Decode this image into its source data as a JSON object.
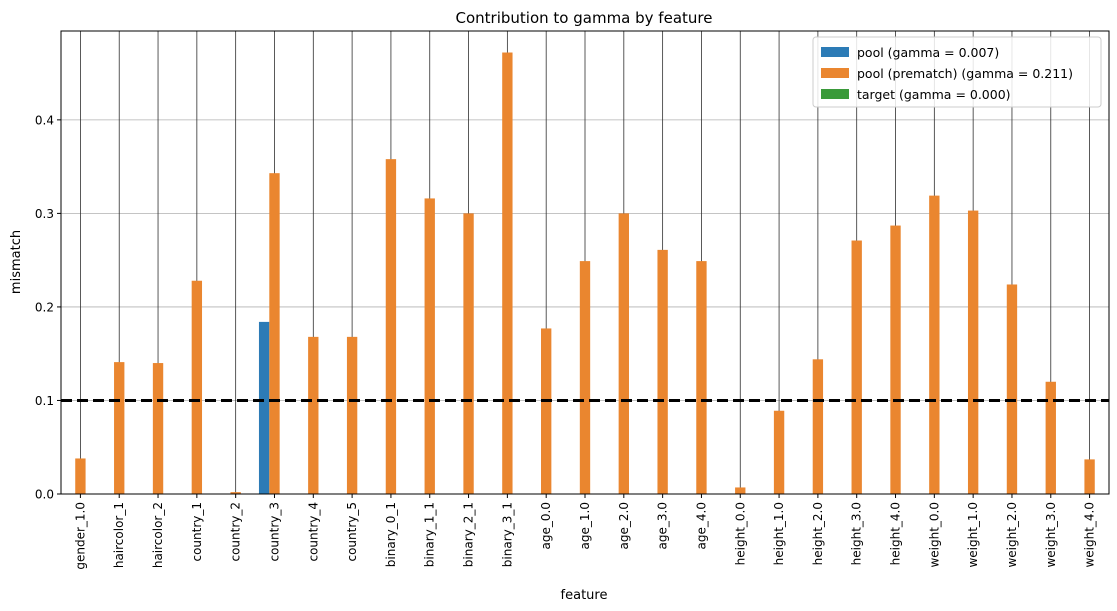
{
  "chart_data": {
    "type": "bar",
    "title": "Contribution to gamma by feature",
    "xlabel": "feature",
    "ylabel": "mismatch",
    "ylim": [
      0,
      0.495
    ],
    "yticks": [
      "0.0",
      "0.1",
      "0.2",
      "0.3",
      "0.4"
    ],
    "ytick_values": [
      0,
      0.1,
      0.2,
      0.3,
      0.4
    ],
    "grid": "horizontal",
    "legend_position": "top-right",
    "threshold": 0.1,
    "categories": [
      "gender_1.0",
      "haircolor_1",
      "haircolor_2",
      "country_1",
      "country_2",
      "country_3",
      "country_4",
      "country_5",
      "binary_0_1",
      "binary_1_1",
      "binary_2_1",
      "binary_3_1",
      "age_0.0",
      "age_1.0",
      "age_2.0",
      "age_3.0",
      "age_4.0",
      "height_0.0",
      "height_1.0",
      "height_2.0",
      "height_3.0",
      "height_4.0",
      "weight_0.0",
      "weight_1.0",
      "weight_2.0",
      "weight_3.0",
      "weight_4.0"
    ],
    "series": [
      {
        "name": "pool (gamma = 0.007)",
        "color": "#2c7bb6",
        "values": [
          0,
          0,
          0,
          0,
          0,
          0.184,
          0,
          0,
          0,
          0,
          0,
          0,
          0,
          0,
          0,
          0,
          0,
          0,
          0,
          0,
          0,
          0,
          0,
          0,
          0,
          0,
          0
        ]
      },
      {
        "name": "pool (prematch) (gamma = 0.211)",
        "color": "#ea862f",
        "values": [
          0.038,
          0.141,
          0.14,
          0.228,
          0.002,
          0.343,
          0.168,
          0.168,
          0.358,
          0.316,
          0.3,
          0.472,
          0.177,
          0.249,
          0.3,
          0.261,
          0.249,
          0.007,
          0.089,
          0.144,
          0.271,
          0.287,
          0.319,
          0.303,
          0.224,
          0.12,
          0.037
        ]
      },
      {
        "name": "target (gamma = 0.000)",
        "color": "#3a9a3a",
        "values": [
          0,
          0,
          0,
          0,
          0,
          0,
          0,
          0,
          0,
          0,
          0,
          0,
          0,
          0,
          0,
          0,
          0,
          0,
          0,
          0,
          0,
          0,
          0,
          0,
          0,
          0,
          0
        ]
      }
    ]
  }
}
